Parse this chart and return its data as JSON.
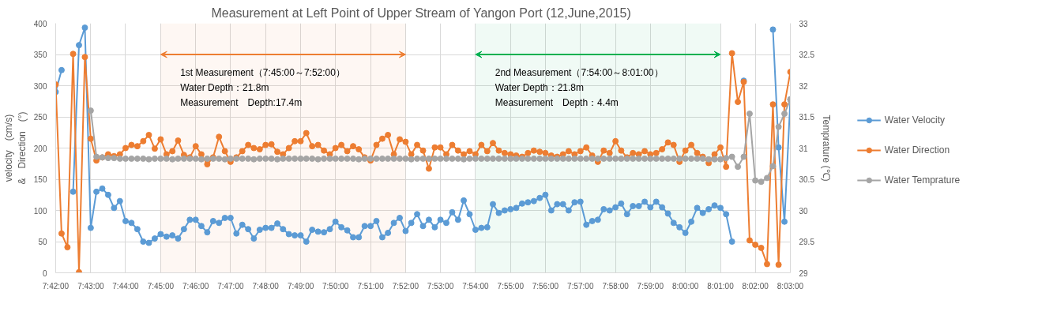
{
  "chart_data": {
    "type": "line",
    "title": "Measurement at Left Point of  Upper Stream of Yangon Port (12,June,2015)",
    "ylabel": "velocity　(cm/s)\n&　Direction　(°)",
    "y2label": "Temprature (℃)",
    "x": [
      7.7,
      7.7028,
      7.7056,
      7.7083,
      7.7111,
      7.7139,
      7.7167,
      7.7194,
      7.7222,
      7.725,
      7.7278,
      7.7306,
      7.7333,
      7.7361,
      7.7389,
      7.7417,
      7.7444,
      7.7472,
      7.75,
      7.7528,
      7.7556,
      7.7583,
      7.7611,
      7.7639,
      7.7667,
      7.7694,
      7.7722,
      7.775,
      7.7778,
      7.7806,
      7.7833,
      7.7861,
      7.7889,
      7.7917,
      7.7944,
      7.7972,
      7.8,
      7.8028,
      7.8056,
      7.8083,
      7.8111,
      7.8139,
      7.8167,
      7.8194,
      7.8222,
      7.825,
      7.8278,
      7.8306,
      7.8333,
      7.8361,
      7.8389,
      7.8417,
      7.8444,
      7.8472,
      7.85,
      7.8528,
      7.8556,
      7.8583,
      7.8611,
      7.8639,
      7.8667,
      7.8694,
      7.8722,
      7.875,
      7.8778,
      7.8806,
      7.8833,
      7.8861,
      7.8889,
      7.8917,
      7.8944,
      7.8972,
      7.9,
      7.9028,
      7.9056,
      7.9083,
      7.9111,
      7.9139,
      7.9167,
      7.9194,
      7.9222,
      7.925,
      7.9278,
      7.9306,
      7.9333,
      7.9361,
      7.9389,
      7.9417,
      7.9444,
      7.9472,
      7.95,
      7.9528,
      7.9556,
      7.9583,
      7.9611,
      7.9639,
      7.9667,
      7.9694,
      7.9722,
      7.975,
      7.9778,
      7.9806,
      7.9833,
      7.9861,
      7.9889,
      7.9917,
      7.9944,
      7.9972,
      8.0,
      8.0028,
      8.0056,
      8.0083,
      8.0111,
      8.0139,
      8.0167,
      8.0194,
      8.0222,
      8.025,
      8.0278,
      8.0306,
      8.0333,
      8.0361,
      8.0389,
      8.0417,
      8.0444,
      8.0472,
      8.05
    ],
    "series": [
      {
        "name": "Water Velocity",
        "color": "#5b9bd5",
        "values": [
          290,
          325,
          null,
          130,
          365,
          393,
          72,
          130,
          135,
          125,
          104,
          115,
          83,
          80,
          70,
          50,
          48,
          55,
          62,
          58,
          60,
          55,
          70,
          85,
          85,
          75,
          65,
          83,
          80,
          88,
          88,
          63,
          77,
          70,
          55,
          69,
          72,
          72,
          79,
          70,
          62,
          60,
          60,
          50,
          69,
          66,
          65,
          70,
          82,
          73,
          68,
          57,
          57,
          75,
          75,
          83,
          57,
          64,
          80,
          88,
          67,
          80,
          94,
          75,
          85,
          73,
          85,
          80,
          97,
          85,
          116,
          94,
          69,
          72,
          73,
          110,
          96,
          100,
          102,
          104,
          111,
          113,
          115,
          120,
          125,
          100,
          110,
          110,
          100,
          113,
          114,
          77,
          83,
          85,
          102,
          100,
          105,
          111,
          94,
          107,
          107,
          114,
          105,
          114,
          105,
          95,
          80,
          73,
          64,
          82,
          104,
          96,
          102,
          108,
          104,
          94,
          50,
          null,
          308,
          null,
          null,
          null,
          null,
          390,
          201,
          82,
          278
        ]
      },
      {
        "name": "Water Direction",
        "color": "#ed7d31",
        "values": [
          302,
          63,
          41,
          351,
          1,
          346,
          215,
          180,
          185,
          190,
          187,
          190,
          200,
          205,
          203,
          211,
          221,
          199,
          214,
          190,
          195,
          212,
          189,
          185,
          203,
          190,
          174,
          185,
          218,
          195,
          178,
          185,
          195,
          205,
          200,
          198,
          205,
          206,
          194,
          190,
          200,
          211,
          211,
          224,
          203,
          205,
          196,
          190,
          200,
          205,
          195,
          203,
          198,
          185,
          180,
          205,
          215,
          221,
          190,
          214,
          210,
          190,
          205,
          196,
          167,
          201,
          201,
          190,
          205,
          196,
          190,
          195,
          190,
          205,
          195,
          208,
          196,
          192,
          190,
          188,
          186,
          192,
          196,
          194,
          192,
          188,
          186,
          190,
          195,
          190,
          195,
          201,
          188,
          178,
          196,
          192,
          211,
          196,
          185,
          192,
          190,
          195,
          190,
          192,
          198,
          209,
          205,
          178,
          196,
          205,
          192,
          186,
          176,
          190,
          201,
          170,
          352,
          274,
          306,
          52,
          45,
          40,
          14,
          270,
          13,
          270,
          322
        ]
      },
      {
        "name": "Water Temprature",
        "color": "#a5a5a5",
        "axis": "y2",
        "values": [
          null,
          null,
          null,
          null,
          null,
          null,
          31.6,
          30.86,
          30.85,
          30.84,
          30.84,
          30.83,
          30.83,
          30.83,
          30.83,
          30.83,
          30.82,
          30.83,
          30.83,
          30.83,
          30.82,
          30.83,
          30.83,
          30.83,
          30.83,
          30.82,
          30.83,
          30.83,
          30.83,
          30.82,
          30.83,
          30.83,
          30.83,
          30.83,
          30.82,
          30.83,
          30.83,
          30.83,
          30.82,
          30.83,
          30.83,
          30.83,
          30.83,
          30.83,
          30.83,
          30.82,
          30.83,
          30.83,
          30.83,
          30.83,
          30.83,
          30.83,
          30.82,
          30.83,
          30.83,
          30.83,
          30.83,
          30.83,
          30.83,
          30.83,
          30.83,
          30.82,
          30.83,
          30.83,
          30.83,
          30.83,
          30.83,
          30.83,
          30.83,
          30.83,
          30.82,
          30.83,
          30.83,
          30.83,
          30.83,
          30.83,
          30.83,
          30.83,
          30.83,
          30.83,
          30.83,
          30.83,
          30.83,
          30.83,
          30.83,
          30.83,
          30.83,
          30.83,
          30.83,
          30.83,
          30.83,
          30.83,
          30.83,
          30.83,
          30.83,
          30.83,
          30.83,
          30.83,
          30.83,
          30.83,
          30.83,
          30.83,
          30.83,
          30.83,
          30.83,
          30.83,
          30.83,
          30.83,
          30.83,
          30.83,
          30.83,
          30.83,
          30.82,
          30.82,
          30.82,
          30.84,
          30.86,
          30.7,
          30.86,
          31.55,
          30.48,
          30.46,
          30.52,
          30.71,
          31.34,
          31.55,
          31.78
        ]
      }
    ],
    "xlim": [
      7.7,
      8.05
    ],
    "xticks": [
      {
        "value": 7.7,
        "label": "7:42:00"
      },
      {
        "value": 7.7167,
        "label": "7:43:00"
      },
      {
        "value": 7.7333,
        "label": "7:44:00"
      },
      {
        "value": 7.75,
        "label": "7:45:00"
      },
      {
        "value": 7.7667,
        "label": "7:46:00"
      },
      {
        "value": 7.7833,
        "label": "7:47:00"
      },
      {
        "value": 7.8,
        "label": "7:48:00"
      },
      {
        "value": 7.8167,
        "label": "7:49:00"
      },
      {
        "value": 7.8333,
        "label": "7:50:00"
      },
      {
        "value": 7.85,
        "label": "7:51:00"
      },
      {
        "value": 7.8667,
        "label": "7:52:00"
      },
      {
        "value": 7.8833,
        "label": "7:53:00"
      },
      {
        "value": 7.9,
        "label": "7:54:00"
      },
      {
        "value": 7.9167,
        "label": "7:55:00"
      },
      {
        "value": 7.9333,
        "label": "7:56:00"
      },
      {
        "value": 7.95,
        "label": "7:57:00"
      },
      {
        "value": 7.9667,
        "label": "7:58:00"
      },
      {
        "value": 7.9833,
        "label": "7:59:00"
      },
      {
        "value": 8.0,
        "label": "8:00:00"
      },
      {
        "value": 8.0167,
        "label": "8:01:00"
      },
      {
        "value": 8.0333,
        "label": "8:02:00"
      },
      {
        "value": 8.05,
        "label": "8:03:00"
      }
    ],
    "ylim": [
      0,
      400
    ],
    "yticks": [
      0,
      50,
      100,
      150,
      200,
      250,
      300,
      350,
      400
    ],
    "y2lim": [
      29,
      33
    ],
    "y2ticks": [
      29,
      29.5,
      30,
      30.5,
      31,
      31.5,
      32,
      32.5,
      33
    ],
    "bands": [
      {
        "axis": "x",
        "from": 7.75,
        "to": 7.8667,
        "color": "#ed7d31",
        "label": "1st Measurement（7:45:00～7:52:00）\nWater Depth：21.8m\nMeasurement　Depth:17.4m"
      },
      {
        "axis": "x",
        "from": 7.9,
        "to": 8.0167,
        "color": "#00b050",
        "label": "2nd Measurement（7:54:00～8:01:00）\nWater Depth：21.8m\nMeasurement　Depth：4.4m"
      }
    ],
    "grid": true,
    "legend": "right",
    "marker": "circle",
    "line_style": "solid"
  }
}
